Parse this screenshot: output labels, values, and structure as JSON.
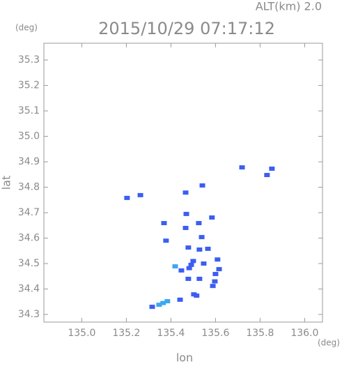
{
  "chart_data": {
    "type": "scatter",
    "title": "2015/10/29 07:17:12",
    "altitude_label": "ALT(km) 2.0",
    "y_unit": "(deg)",
    "x_unit": "(deg)",
    "x_label": "lon",
    "y_label": "lat",
    "xlim": [
      134.83,
      136.08
    ],
    "ylim": [
      34.27,
      35.366
    ],
    "xticks": [
      {
        "value": 135,
        "label": "135.0"
      },
      135.2,
      135.4,
      135.6,
      135.8,
      {
        "value": 136,
        "label": "136.0"
      }
    ],
    "yticks": [
      34.3,
      34.4,
      34.5,
      34.6,
      34.7,
      34.8,
      34.9,
      {
        "value": 35,
        "label": "35.0"
      },
      35.1,
      35.2,
      35.3
    ],
    "series": [
      {
        "color": "#3c5ef0",
        "x": [
          135.203,
          135.263,
          135.719,
          135.853,
          135.831,
          135.466,
          135.541,
          135.469,
          135.369,
          135.466,
          135.584,
          135.525,
          135.478,
          135.538,
          135.528,
          135.566,
          135.491,
          135.5,
          135.482,
          135.547,
          135.447,
          135.609,
          135.6,
          135.588,
          135.597,
          135.478,
          135.503,
          135.515,
          135.528,
          135.441,
          135.316,
          135.616,
          135.378
        ],
        "y": [
          34.758,
          34.769,
          34.878,
          34.873,
          34.848,
          34.779,
          34.807,
          34.695,
          34.659,
          34.64,
          34.681,
          34.659,
          34.563,
          34.604,
          34.555,
          34.558,
          34.495,
          34.51,
          34.482,
          34.5,
          34.473,
          34.516,
          34.459,
          34.412,
          34.43,
          34.44,
          34.379,
          34.374,
          34.44,
          34.358,
          34.33,
          34.478,
          34.59
        ]
      },
      {
        "color": "#3ca8f0",
        "x": [
          135.419,
          135.384,
          135.347,
          135.365
        ],
        "y": [
          34.489,
          34.352,
          34.338,
          34.345
        ]
      }
    ]
  }
}
